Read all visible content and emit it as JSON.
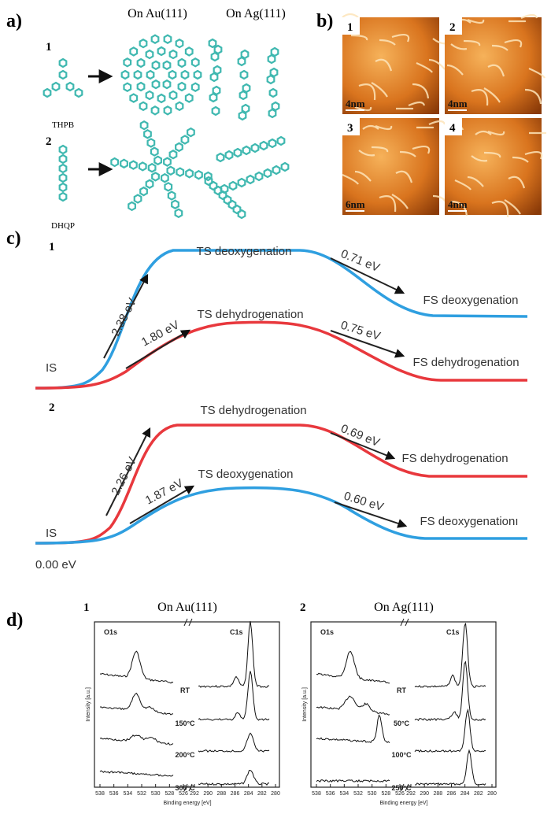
{
  "panel_a": {
    "label": "a)",
    "columns": [
      "On Au(111)",
      "On Ag(111)"
    ],
    "rows": [
      {
        "number": "1",
        "molecule": "THPB"
      },
      {
        "number": "2",
        "molecule": "DHQP"
      }
    ]
  },
  "panel_b": {
    "label": "b)",
    "images": [
      {
        "number": "1",
        "scale": "4nm"
      },
      {
        "number": "2",
        "scale": "4nm"
      },
      {
        "number": "3",
        "scale": "6nm"
      },
      {
        "number": "4",
        "scale": "4nm"
      }
    ]
  },
  "panel_c": {
    "label": "c)",
    "zero": "0.00 eV",
    "diagrams": [
      {
        "number": "1",
        "initial": "IS",
        "upper": {
          "ts": "TS deoxygenation",
          "barrier": "2.38 eV",
          "release": "0.71 eV",
          "fs": "FS deoxygenation"
        },
        "lower": {
          "ts": "TS dehydrogenation",
          "barrier": "1.80 eV",
          "release": "0.75 eV",
          "fs": "FS dehydrogenation"
        }
      },
      {
        "number": "2",
        "initial": "IS",
        "upper": {
          "ts": "TS dehydrogenation",
          "barrier": "2.26 eV",
          "release": "0.69 eV",
          "fs": "FS dehydrogenation"
        },
        "lower": {
          "ts": "TS deoxygenation",
          "barrier": "1.87 eV",
          "release": "0.60 eV",
          "fs": "FS deoxygenationı"
        }
      }
    ]
  },
  "panel_d": {
    "label": "d)",
    "plots": [
      {
        "number": "1",
        "title": "On Au(111)",
        "o_label": "O1s",
        "c_label": "C1s",
        "temperatures": [
          "RT",
          "150°C",
          "200°C",
          "300°C"
        ],
        "x_label": "Binding energy [eV]",
        "y_label": "Intensity [a.u.]",
        "xticks_o": [
          538,
          536,
          534,
          532,
          530,
          528,
          526
        ],
        "xticks_c": [
          292,
          290,
          288,
          286,
          284,
          282,
          280
        ]
      },
      {
        "number": "2",
        "title": "On Ag(111)",
        "o_label": "O1s",
        "c_label": "C1s",
        "temperatures": [
          "RT",
          "50°C",
          "100°C",
          "250°C"
        ],
        "x_label": "Binding energy [eV]",
        "y_label": "Intensity [a.u.]",
        "xticks_o": [
          538,
          536,
          534,
          532,
          530,
          528,
          526
        ],
        "xticks_c": [
          292,
          290,
          288,
          286,
          284,
          282,
          280
        ]
      }
    ]
  }
}
